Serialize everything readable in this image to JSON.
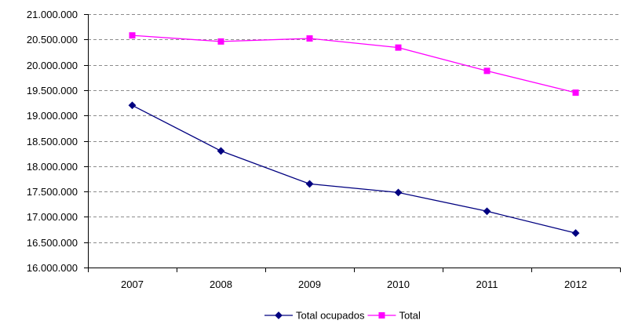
{
  "chart_data": {
    "type": "line",
    "title": "",
    "xlabel": "",
    "ylabel": "",
    "categories": [
      "2007",
      "2008",
      "2009",
      "2010",
      "2011",
      "2012"
    ],
    "ylim": [
      16000000,
      21000000
    ],
    "y_ticks": [
      16000000,
      16500000,
      17000000,
      17500000,
      18000000,
      18500000,
      19000000,
      19500000,
      20000000,
      20500000,
      21000000
    ],
    "y_tick_labels": [
      "16.000.000",
      "16.500.000",
      "17.000.000",
      "17.500.000",
      "18.000.000",
      "18.500.000",
      "19.000.000",
      "19.500.000",
      "20.000.000",
      "20.500.000",
      "21.000.000"
    ],
    "grid": "horizontal dashed",
    "legend_position": "bottom",
    "series": [
      {
        "name": "Total ocupados",
        "color": "#000080",
        "marker": "diamond",
        "values": [
          19200000,
          18300000,
          17650000,
          17480000,
          17110000,
          16680000
        ]
      },
      {
        "name": "Total",
        "color": "#ff00ff",
        "marker": "square",
        "values": [
          20580000,
          20460000,
          20520000,
          20340000,
          19880000,
          19450000
        ]
      }
    ]
  }
}
